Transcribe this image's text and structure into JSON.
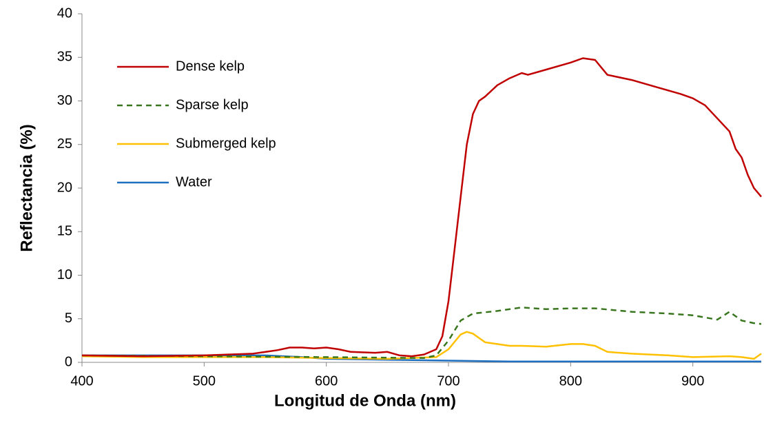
{
  "chart_data": {
    "type": "line",
    "x_label": "Longitud de Onda (nm)",
    "y_label": "Reflectancia (%)",
    "xlim": [
      400,
      956
    ],
    "xticks": [
      400,
      500,
      600,
      700,
      800,
      900
    ],
    "ylim": [
      0,
      40
    ],
    "yticks": [
      0,
      5,
      10,
      15,
      20,
      25,
      30,
      35,
      40
    ],
    "grid": false,
    "legend": "upper-left",
    "series": [
      {
        "name": "Dense kelp",
        "color": "#c00000",
        "dashed": false,
        "x": [
          400,
          450,
          500,
          540,
          560,
          570,
          580,
          590,
          600,
          610,
          620,
          640,
          650,
          660,
          670,
          680,
          690,
          695,
          700,
          705,
          710,
          715,
          720,
          725,
          730,
          740,
          750,
          760,
          765,
          780,
          800,
          810,
          820,
          830,
          850,
          870,
          890,
          900,
          910,
          920,
          930,
          935,
          940,
          945,
          950,
          956
        ],
        "values": [
          0.8,
          0.7,
          0.8,
          1.0,
          1.4,
          1.7,
          1.7,
          1.6,
          1.7,
          1.5,
          1.2,
          1.1,
          1.2,
          0.8,
          0.7,
          0.9,
          1.5,
          3,
          7,
          13,
          19,
          25,
          28.5,
          30,
          30.5,
          31.8,
          32.6,
          33.2,
          33,
          33.6,
          34.4,
          34.9,
          34.7,
          33,
          32.4,
          31.6,
          30.8,
          30.3,
          29.5,
          28,
          26.5,
          24.5,
          23.5,
          21.5,
          20,
          19
        ]
      },
      {
        "name": "Sparse kelp",
        "color": "#38761d",
        "dashed": true,
        "x": [
          400,
          500,
          600,
          680,
          690,
          700,
          710,
          720,
          740,
          760,
          780,
          800,
          820,
          850,
          880,
          900,
          920,
          930,
          940,
          950,
          956
        ],
        "values": [
          0.8,
          0.7,
          0.6,
          0.5,
          0.8,
          2.5,
          4.8,
          5.6,
          5.9,
          6.3,
          6.1,
          6.2,
          6.2,
          5.8,
          5.6,
          5.4,
          4.9,
          5.8,
          4.8,
          4.5,
          4.4
        ]
      },
      {
        "name": "Submerged kelp",
        "color": "#ffc000",
        "dashed": false,
        "x": [
          400,
          450,
          500,
          550,
          600,
          650,
          690,
          700,
          710,
          715,
          720,
          730,
          750,
          760,
          780,
          800,
          810,
          820,
          830,
          850,
          880,
          900,
          930,
          940,
          950,
          956
        ],
        "values": [
          0.7,
          0.6,
          0.6,
          0.6,
          0.5,
          0.4,
          0.6,
          1.5,
          3.2,
          3.5,
          3.3,
          2.3,
          1.9,
          1.9,
          1.8,
          2.1,
          2.1,
          1.9,
          1.2,
          1.0,
          0.8,
          0.6,
          0.7,
          0.6,
          0.4,
          1.0
        ]
      },
      {
        "name": "Water",
        "color": "#1f6fc0",
        "dashed": false,
        "x": [
          400,
          450,
          500,
          550,
          580,
          600,
          650,
          700,
          750,
          800,
          900,
          956
        ],
        "values": [
          0.8,
          0.8,
          0.8,
          0.8,
          0.6,
          0.4,
          0.3,
          0.2,
          0.1,
          0.1,
          0.1,
          0.1
        ]
      }
    ]
  }
}
